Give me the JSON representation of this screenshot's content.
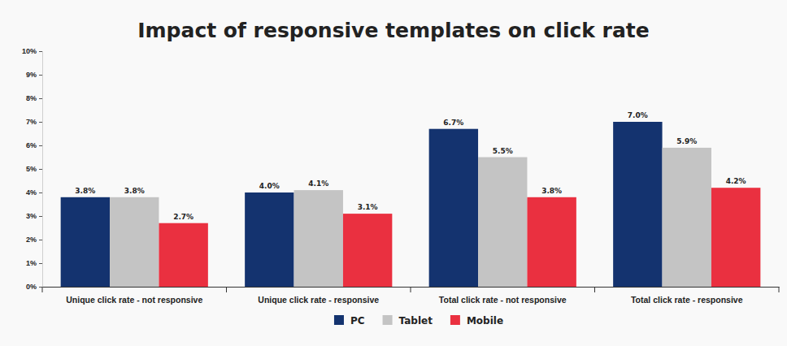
{
  "chart_data": {
    "type": "bar",
    "title": "Impact of responsive templates on click rate",
    "categories": [
      "Unique click rate - not responsive",
      "Unique click rate - responsive",
      "Total click rate - not responsive",
      "Total click rate - responsive"
    ],
    "series": [
      {
        "name": "PC",
        "color": "#14336f",
        "values": [
          3.8,
          4.0,
          6.7,
          7.0
        ],
        "value_labels": [
          "3.8%",
          "4.0%",
          "6.7%",
          "7.0%"
        ]
      },
      {
        "name": "Tablet",
        "color": "#c4c4c4",
        "values": [
          3.8,
          4.1,
          5.5,
          5.9
        ],
        "value_labels": [
          "3.8%",
          "4.1%",
          "5.5%",
          "5.9%"
        ]
      },
      {
        "name": "Mobile",
        "color": "#ea3040",
        "values": [
          2.7,
          3.1,
          3.8,
          4.2
        ],
        "value_labels": [
          "2.7%",
          "3.1%",
          "3.8%",
          "4.2%"
        ]
      }
    ],
    "ylim": [
      0,
      10
    ],
    "yticks": [
      {
        "value": 0,
        "label": "0%"
      },
      {
        "value": 1,
        "label": "1%"
      },
      {
        "value": 2,
        "label": "2%"
      },
      {
        "value": 3,
        "label": "3%"
      },
      {
        "value": 4,
        "label": "4%"
      },
      {
        "value": 5,
        "label": "5%"
      },
      {
        "value": 6,
        "label": "6%"
      },
      {
        "value": 7,
        "label": "7%"
      },
      {
        "value": 8,
        "label": "8%"
      },
      {
        "value": 9,
        "label": "9%"
      },
      {
        "value": 10,
        "label": "10%"
      }
    ],
    "grid": false,
    "legend": "bottom",
    "data_labels": true
  }
}
